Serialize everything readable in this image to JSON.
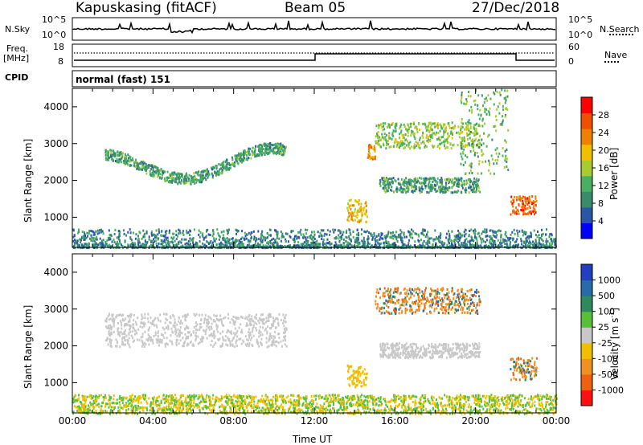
{
  "header": {
    "station": "Kapuskasing (fitACF)",
    "beam": "Beam 05",
    "date": "27/Dec/2018"
  },
  "status_panels": {
    "nsky_label": "N.Sky",
    "nsky_ticks": [
      "10^5",
      "10^0"
    ],
    "nsearch_label": "N.Search",
    "nsearch_ticks": [
      "10^5",
      "10^0"
    ],
    "freq_label": "Freq.",
    "freq_unit": "[MHz]",
    "freq_ticks": [
      "18",
      "8"
    ],
    "nave_label": "Nave",
    "nave_ticks": [
      "60",
      "0"
    ],
    "cpid_label": "CPID",
    "cpid_text": "normal (fast) 151"
  },
  "colors": {
    "power_scale": [
      "#0000ff",
      "#2a56a8",
      "#3a8a6e",
      "#48b060",
      "#a8cc30",
      "#f0c000",
      "#f08000",
      "#f05000",
      "#ff0000"
    ],
    "velocity_scale": [
      "#2040c0",
      "#2a6aa8",
      "#2e8a5e",
      "#58c038",
      "#c8c8c8",
      "#f0c000",
      "#f09020",
      "#f06010",
      "#ff1010"
    ]
  },
  "chart_data": [
    {
      "type": "heatmap",
      "name": "power",
      "ylabel": "Slant Range [km]",
      "yticks": [
        1000,
        2000,
        3000,
        4000
      ],
      "ylim": [
        180,
        4500
      ],
      "xlim": [
        0,
        24
      ],
      "colorbar": {
        "label": "Power [dB]",
        "ticks": [
          "28",
          "24",
          "20",
          "16",
          "12",
          "8",
          "4"
        ],
        "range": [
          0,
          30
        ]
      },
      "regions": [
        {
          "x": [
            1.6,
            10.6
          ],
          "y": [
            2000,
            2900
          ],
          "desc": "arc",
          "value": 10
        },
        {
          "x": [
            13.6,
            14.6
          ],
          "y": [
            900,
            1500
          ],
          "value": 18
        },
        {
          "x": [
            14.6,
            15.0
          ],
          "y": [
            2600,
            3000
          ],
          "value": 22
        },
        {
          "x": [
            15.0,
            20.2
          ],
          "y": [
            2900,
            3600
          ],
          "value": 14
        },
        {
          "x": [
            15.2,
            20.2
          ],
          "y": [
            1700,
            2100
          ],
          "value": 10
        },
        {
          "x": [
            19.2,
            21.6
          ],
          "y": [
            2200,
            4500
          ],
          "value": 12
        },
        {
          "x": [
            21.7,
            23.0
          ],
          "y": [
            1100,
            1600
          ],
          "value": 24
        },
        {
          "x": [
            0,
            24
          ],
          "y": [
            180,
            700
          ],
          "desc": "ground scatter",
          "value": 8
        }
      ]
    },
    {
      "type": "heatmap",
      "name": "velocity",
      "ylabel": "Slant Range [km]",
      "yticks": [
        1000,
        2000,
        3000,
        4000
      ],
      "ylim": [
        180,
        4500
      ],
      "xlim": [
        0,
        24
      ],
      "xticks": [
        "00:00",
        "04:00",
        "08:00",
        "12:00",
        "16:00",
        "20:00",
        "00:00"
      ],
      "xlabel": "Time UT",
      "colorbar": {
        "label": "Velocity [m s^-1]",
        "ticks": [
          "1000",
          "500",
          "100",
          "25",
          "-25",
          "-100",
          "-500",
          "-1000"
        ]
      },
      "regions": [
        {
          "x": [
            1.6,
            10.6
          ],
          "y": [
            2000,
            2900
          ],
          "value": 0
        },
        {
          "x": [
            13.6,
            14.6
          ],
          "y": [
            900,
            1500
          ],
          "value": -20
        },
        {
          "x": [
            15.0,
            20.2
          ],
          "y": [
            2900,
            3600
          ],
          "value": -200
        },
        {
          "x": [
            15.2,
            20.2
          ],
          "y": [
            1700,
            2100
          ],
          "value": 0
        },
        {
          "x": [
            21.7,
            23.0
          ],
          "y": [
            1100,
            1700
          ],
          "value": -200
        },
        {
          "x": [
            0,
            24
          ],
          "y": [
            180,
            700
          ],
          "value": -60
        }
      ]
    }
  ]
}
